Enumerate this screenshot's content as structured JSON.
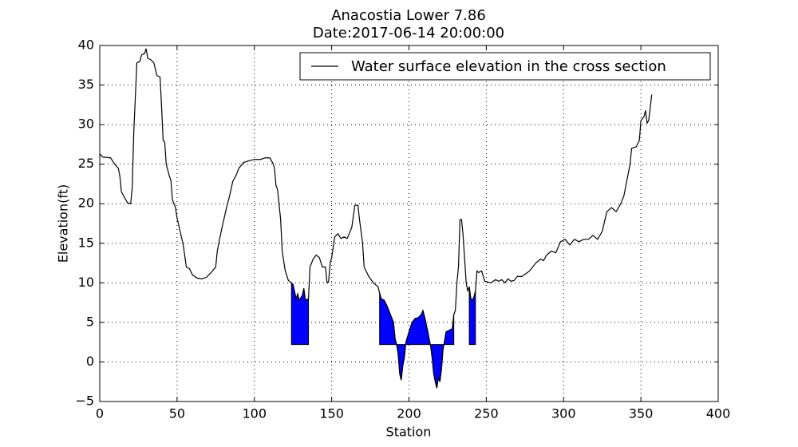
{
  "chart_data": {
    "type": "line",
    "title": "Anacostia Lower 7.86",
    "subtitle": "Date:2017-06-14 20:00:00",
    "x_label": "Station",
    "y_label": "Elevation(ft)",
    "legend_position": "upper right",
    "grid": true,
    "xlim": [
      0,
      400
    ],
    "ylim": [
      -5,
      40
    ],
    "xticks": [
      0,
      50,
      100,
      150,
      200,
      250,
      300,
      350,
      400
    ],
    "yticks": [
      {
        "value": -5,
        "label": "−5"
      },
      0,
      5,
      10,
      15,
      20,
      25,
      30,
      35,
      40
    ],
    "fill_color": "#0000ff",
    "fill_baseline": 2.2,
    "fill_ranges": [
      [
        124,
        135
      ],
      [
        181,
        229
      ],
      [
        239,
        243
      ]
    ],
    "series": [
      {
        "name": "Water surface elevation in the cross section",
        "color": "#000000",
        "x": [
          0,
          2,
          7,
          10,
          12,
          13,
          14,
          16,
          18,
          20,
          21,
          22,
          24,
          26,
          27,
          29,
          30,
          31,
          33,
          35,
          37,
          39,
          40,
          41,
          42,
          43,
          45,
          46,
          47,
          49,
          50,
          52,
          54,
          56,
          58,
          60,
          63,
          66,
          69,
          72,
          75,
          76,
          78,
          80,
          82,
          84,
          86,
          88,
          90,
          93,
          96,
          100,
          104,
          107,
          110,
          112,
          113,
          114,
          115,
          117,
          118,
          120,
          122,
          124,
          125,
          127,
          128,
          129,
          131,
          132,
          133,
          135,
          136,
          138,
          140,
          142,
          144,
          146,
          147,
          148,
          149,
          150,
          152,
          154,
          156,
          158,
          160,
          163,
          165,
          167,
          168,
          170,
          171,
          174,
          177,
          180,
          182,
          184,
          186,
          188,
          190,
          191,
          192,
          193,
          194,
          195,
          196,
          197,
          198,
          200,
          202,
          204,
          206,
          208,
          209,
          210,
          212,
          214,
          215,
          216,
          217,
          218,
          219,
          220,
          221,
          222,
          224,
          226,
          228,
          229,
          230,
          231,
          232,
          233,
          234,
          235,
          236,
          237,
          238,
          239,
          240,
          241,
          242,
          243,
          244,
          245,
          247,
          249,
          253,
          256,
          258,
          260,
          262,
          264,
          266,
          268,
          270,
          273,
          278,
          282,
          285,
          287,
          289,
          292,
          295,
          298,
          301,
          304,
          307,
          310,
          313,
          316,
          319,
          322,
          325,
          328,
          331,
          334,
          337,
          339,
          341,
          343,
          344,
          347,
          349,
          350,
          352,
          353,
          354,
          355,
          356,
          357
        ],
        "values": [
          26.3,
          25.9,
          25.8,
          24.9,
          24.5,
          23.5,
          21.5,
          20.8,
          20.1,
          20,
          22,
          29,
          37.8,
          38,
          38.8,
          39,
          39.6,
          38.4,
          38.2,
          37.8,
          36.2,
          36,
          32.2,
          28,
          27.8,
          25,
          23.5,
          23,
          20.5,
          19.5,
          18.2,
          16.5,
          14.8,
          12,
          11.8,
          11,
          10.6,
          10.5,
          10.7,
          11.3,
          12,
          14,
          16,
          17.8,
          19.5,
          21,
          22.8,
          23.5,
          24.5,
          25.2,
          25.4,
          25.6,
          25.6,
          25.8,
          25.8,
          25.1,
          24.5,
          22.3,
          21.8,
          18,
          14,
          11.5,
          10.3,
          10,
          9.8,
          8,
          8.6,
          7.8,
          8.4,
          9.3,
          7.8,
          8,
          12,
          13,
          13.5,
          13.2,
          12,
          12,
          10,
          10.1,
          12.5,
          13.2,
          15.8,
          16.2,
          15.6,
          15.8,
          15.6,
          17,
          19.8,
          19.8,
          18,
          15,
          12,
          10.8,
          10,
          9.5,
          8,
          7.8,
          7,
          6,
          5,
          3,
          2.2,
          1,
          -1.5,
          -2.3,
          -0.5,
          0.5,
          2.5,
          3.8,
          5,
          5.5,
          5.6,
          6,
          6.5,
          5.8,
          4,
          2,
          0.5,
          -1.5,
          -2.5,
          -3.3,
          -2,
          -2.5,
          -1,
          1.5,
          3.8,
          4,
          4.2,
          6,
          6.5,
          10,
          12,
          18,
          18,
          16,
          13,
          10,
          9,
          9.5,
          8,
          7.8,
          8.2,
          9,
          11.5,
          11.3,
          11.5,
          10.2,
          10,
          10.4,
          10.2,
          10.4,
          10,
          10.5,
          10.2,
          10.3,
          10.8,
          10.8,
          11.5,
          12.5,
          13,
          12.8,
          13.5,
          14,
          13.8,
          15.2,
          15.5,
          14.8,
          15.5,
          15.2,
          15.5,
          15.5,
          16,
          15.5,
          16.5,
          19,
          19.5,
          19,
          20,
          21,
          23,
          25,
          27,
          27.2,
          28,
          30.5,
          31,
          31.8,
          30.2,
          30.5,
          32,
          33.8
        ]
      }
    ]
  }
}
